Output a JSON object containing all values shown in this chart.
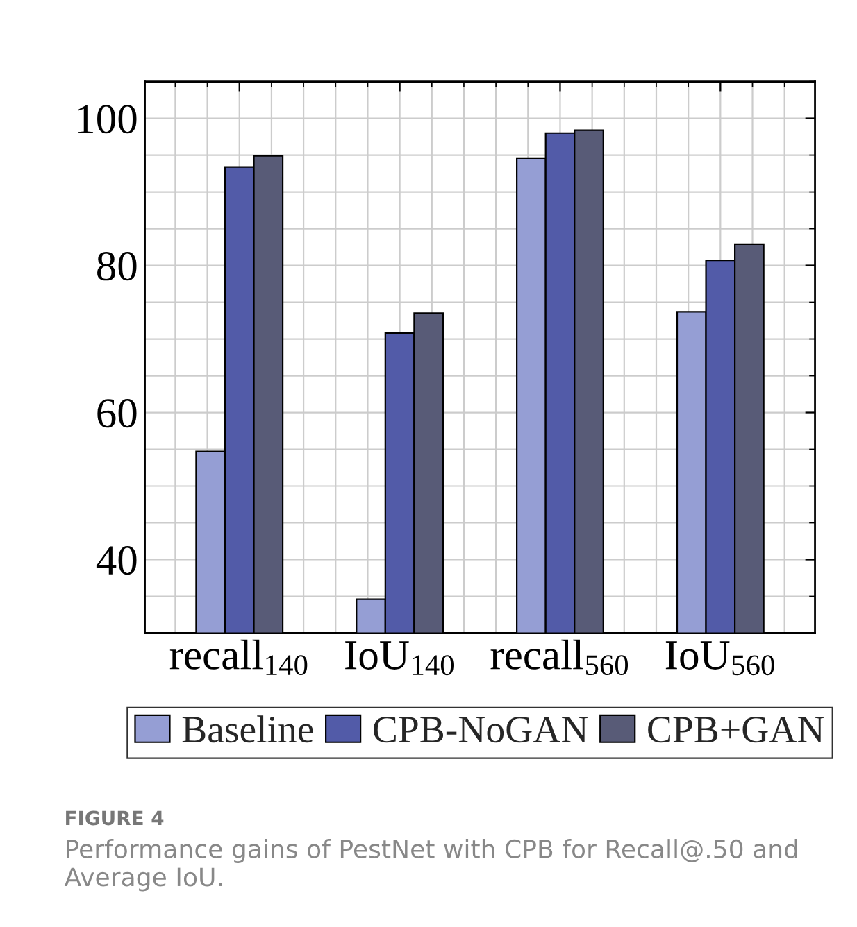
{
  "chart_data": {
    "type": "bar",
    "categories": [
      "recall$_{140}$",
      "IoU$_{140}$",
      "recall$_{560}$",
      "IoU$_{560}$"
    ],
    "series": [
      {
        "name": "Baseline",
        "color": "#959ed4",
        "values": [
          54.7,
          34.6,
          94.6,
          73.7
        ]
      },
      {
        "name": "CPB-NoGAN",
        "color": "#525ba8",
        "values": [
          93.4,
          70.8,
          98.0,
          80.7
        ]
      },
      {
        "name": "CPB+GAN",
        "color": "#585b77",
        "values": [
          94.9,
          73.5,
          98.4,
          82.9
        ]
      }
    ],
    "ylim": [
      30,
      105
    ],
    "yticks": [
      40,
      60,
      80,
      100
    ],
    "grid": true,
    "legend": "bottom",
    "annotations": [
      "FIGURE 4",
      "Performance gains of PestNet with CPB for Recall@.50 and Average IoU."
    ]
  }
}
